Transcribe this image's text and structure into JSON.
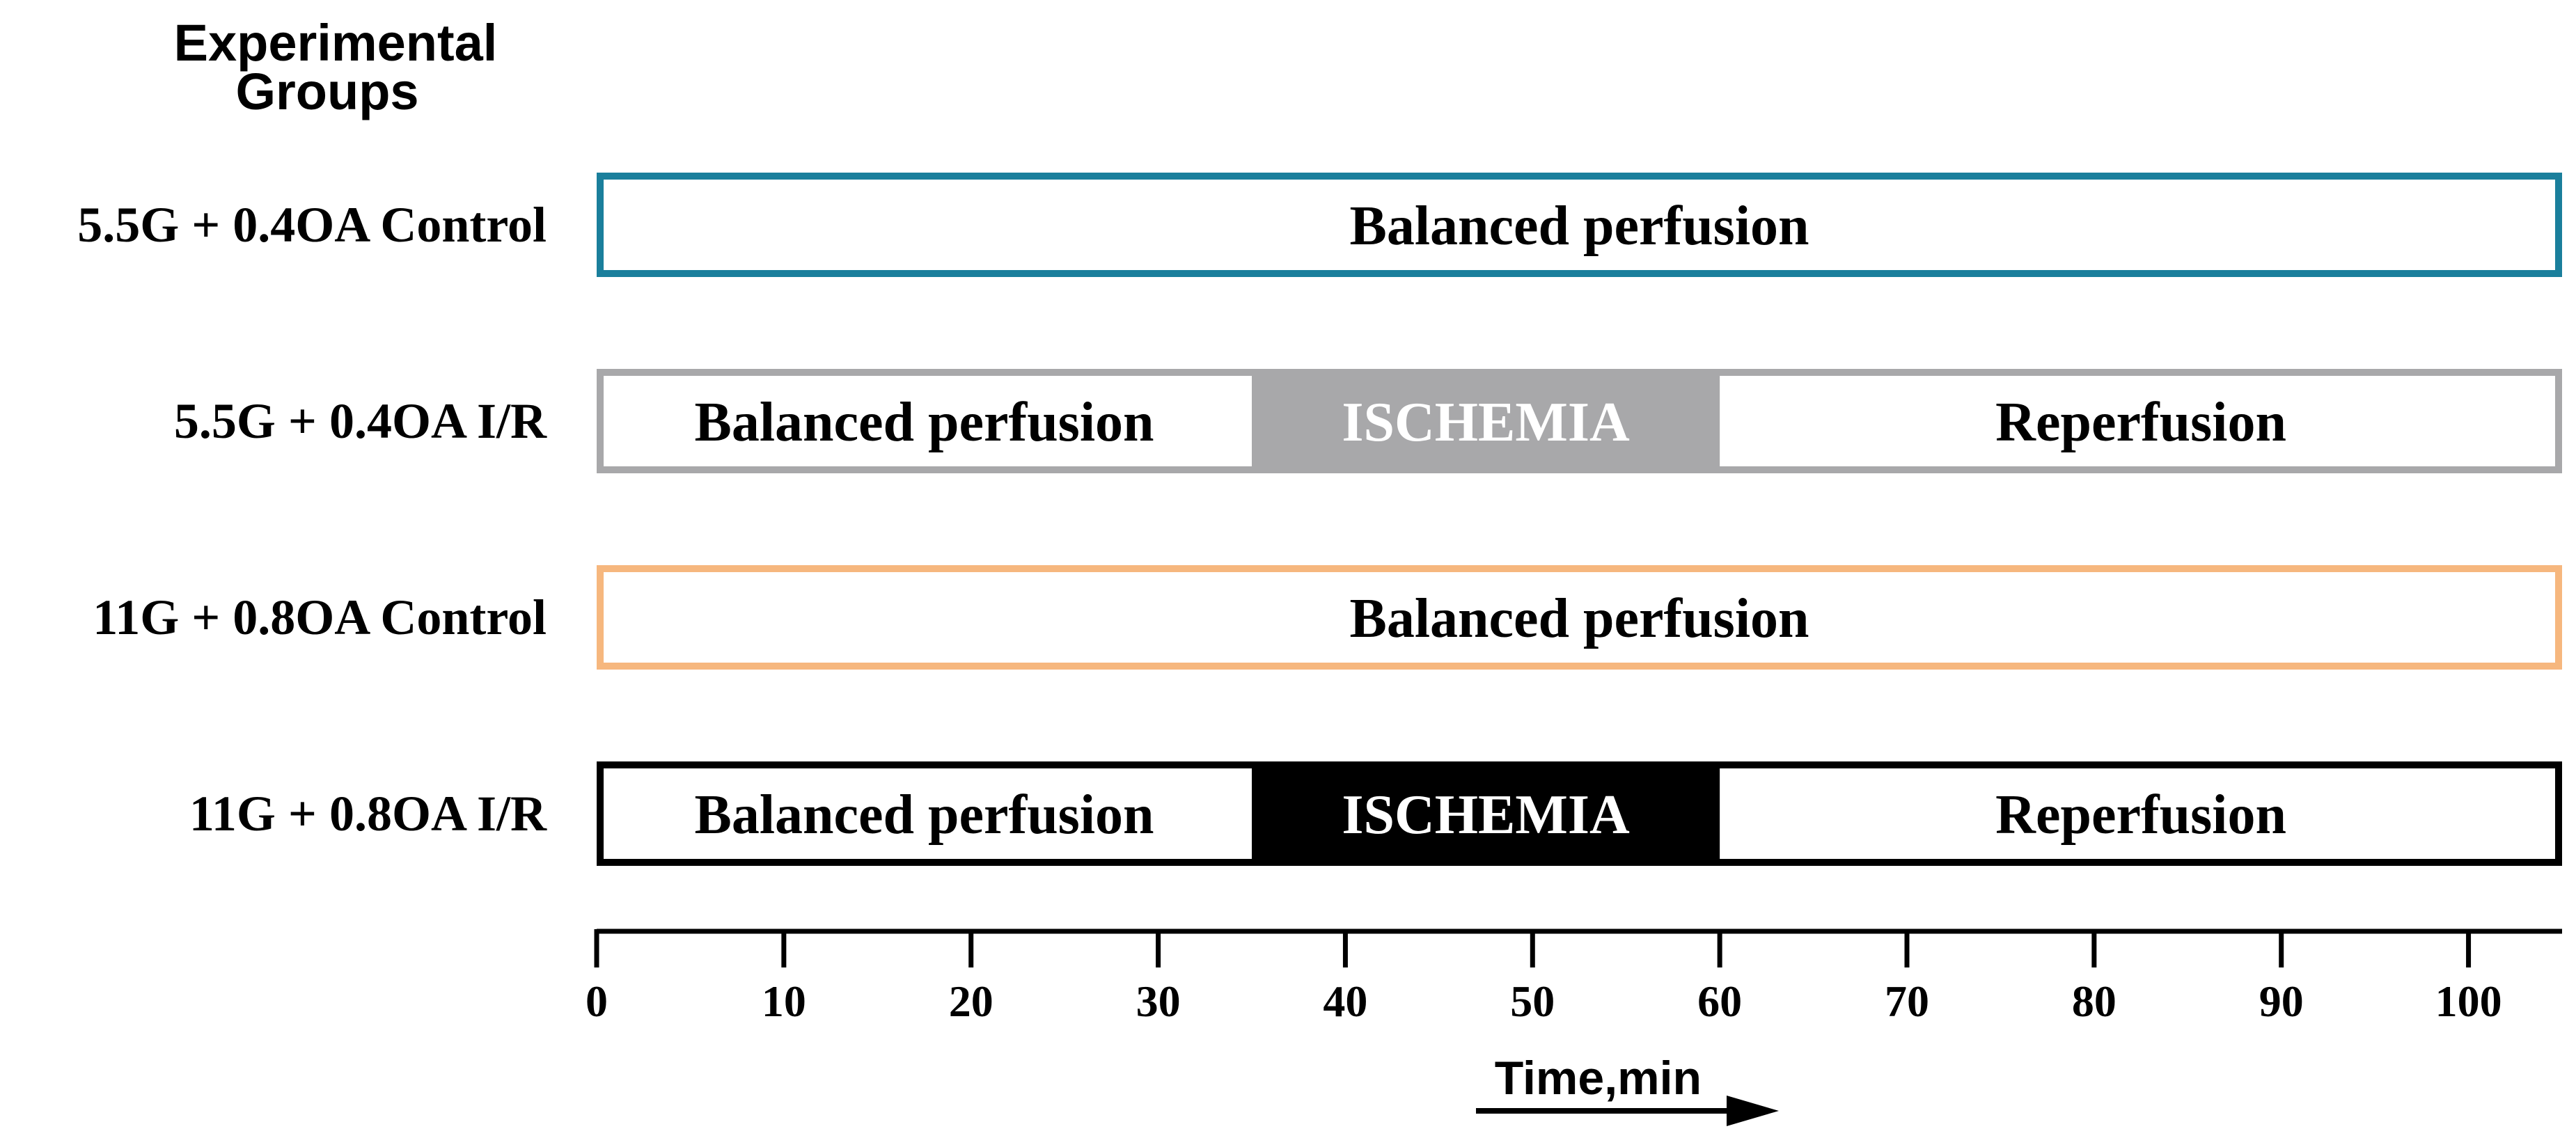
{
  "header": {
    "title_line1": "Experimental",
    "title_line2": "Groups"
  },
  "chart_data": {
    "type": "timeline",
    "x_range": [
      0,
      105
    ],
    "ticks": [
      0,
      10,
      20,
      30,
      40,
      50,
      60,
      70,
      80,
      90,
      100
    ],
    "axis_label": "Time,min",
    "groups": [
      {
        "label": "5.5G + 0.4OA Control",
        "border_color": "#1a7f9c",
        "segments": [
          {
            "label": "Balanced perfusion",
            "start": 0,
            "end": 105,
            "fill": "#ffffff",
            "text_color": "#000000"
          }
        ]
      },
      {
        "label": "5.5G + 0.4OA I/R",
        "border_color": "#a8a8aa",
        "segments": [
          {
            "label": "Balanced perfusion",
            "start": 0,
            "end": 35,
            "fill": "#ffffff",
            "text_color": "#000000"
          },
          {
            "label": "ISCHEMIA",
            "start": 35,
            "end": 60,
            "fill": "#a8a8aa",
            "text_color": "#ffffff"
          },
          {
            "label": "Reperfusion",
            "start": 60,
            "end": 105,
            "fill": "#ffffff",
            "text_color": "#000000"
          }
        ]
      },
      {
        "label": "11G + 0.8OA Control",
        "border_color": "#f6b77e",
        "segments": [
          {
            "label": "Balanced perfusion",
            "start": 0,
            "end": 105,
            "fill": "#ffffff",
            "text_color": "#000000"
          }
        ]
      },
      {
        "label": "11G + 0.8OA I/R",
        "border_color": "#000000",
        "segments": [
          {
            "label": "Balanced perfusion",
            "start": 0,
            "end": 35,
            "fill": "#ffffff",
            "text_color": "#000000"
          },
          {
            "label": "ISCHEMIA",
            "start": 35,
            "end": 60,
            "fill": "#000000",
            "text_color": "#ffffff"
          },
          {
            "label": "Reperfusion",
            "start": 60,
            "end": 105,
            "fill": "#ffffff",
            "text_color": "#000000"
          }
        ]
      }
    ]
  }
}
